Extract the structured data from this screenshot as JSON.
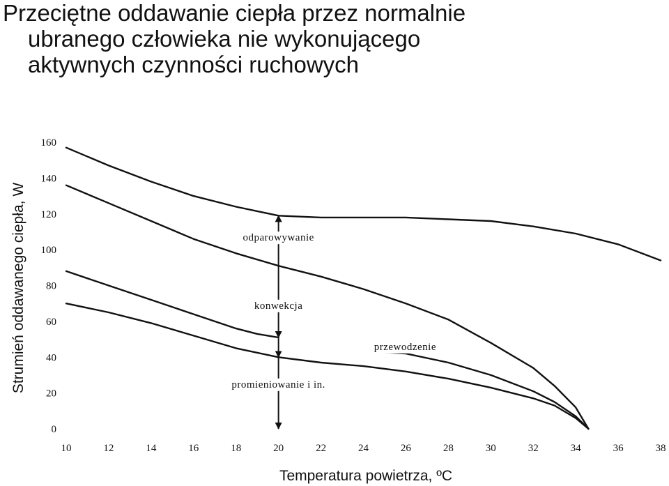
{
  "chart_data": {
    "type": "line",
    "title_lines": [
      "Przeciętne oddawanie ciepła przez normalnie",
      "ubranego człowieka nie wykonującego",
      "aktywnych czynności ruchowych"
    ],
    "xlabel": "Temperatura powietrza, ºC",
    "ylabel": "Strumień oddawanego ciepła, W",
    "xlim": [
      10,
      38
    ],
    "ylim": [
      0,
      160
    ],
    "xticks": [
      10,
      12,
      14,
      16,
      18,
      20,
      22,
      24,
      26,
      28,
      30,
      32,
      34,
      36,
      38
    ],
    "yticks": [
      0,
      20,
      40,
      60,
      80,
      100,
      120,
      140,
      160
    ],
    "grid": false,
    "series": [
      {
        "x": [
          10,
          12,
          14,
          16,
          18,
          20,
          22,
          24,
          26,
          28,
          30,
          32,
          34,
          36,
          38
        ],
        "values": [
          157,
          147,
          138,
          130,
          124,
          119,
          118,
          118,
          118,
          117,
          116,
          113,
          109,
          103,
          94
        ]
      },
      {
        "x": [
          10,
          12,
          14,
          16,
          18,
          20,
          22,
          24,
          26,
          28,
          30,
          32,
          33,
          34,
          34.6
        ],
        "values": [
          136,
          126,
          116,
          106,
          98,
          91,
          85,
          78,
          70,
          61,
          48,
          34,
          24,
          12,
          0
        ]
      },
      {
        "x": [
          10,
          12,
          14,
          16,
          18,
          19,
          20
        ],
        "values": [
          88,
          80,
          72,
          64,
          56,
          53,
          51
        ]
      },
      {
        "x": [
          24.5,
          26,
          28,
          30,
          32,
          33,
          34,
          34.6
        ],
        "values": [
          43,
          42,
          37,
          30,
          21,
          15,
          7,
          0
        ]
      },
      {
        "x": [
          10,
          12,
          14,
          16,
          18,
          20,
          22,
          24,
          26,
          28,
          30,
          32,
          33,
          34,
          34.6
        ],
        "values": [
          70,
          65,
          59,
          52,
          45,
          40,
          37,
          35,
          32,
          28,
          23,
          17,
          13,
          6,
          0
        ]
      }
    ],
    "annotations": [
      {
        "text": "odparowywanie",
        "x": 20,
        "y": 107
      },
      {
        "text": "konwekcja",
        "x": 20,
        "y": 69
      },
      {
        "text": "przewodzenie",
        "x": 24.5,
        "y": 46
      },
      {
        "text": "promieniowanie i in.",
        "x": 20,
        "y": 25
      }
    ],
    "arrows": [
      {
        "x": 20,
        "from": 91,
        "to": 119
      },
      {
        "x": 20,
        "from": 91,
        "to": 51
      },
      {
        "x": 20,
        "from": 51,
        "to": 40
      },
      {
        "x": 20,
        "from": 40,
        "to": 0
      }
    ]
  }
}
